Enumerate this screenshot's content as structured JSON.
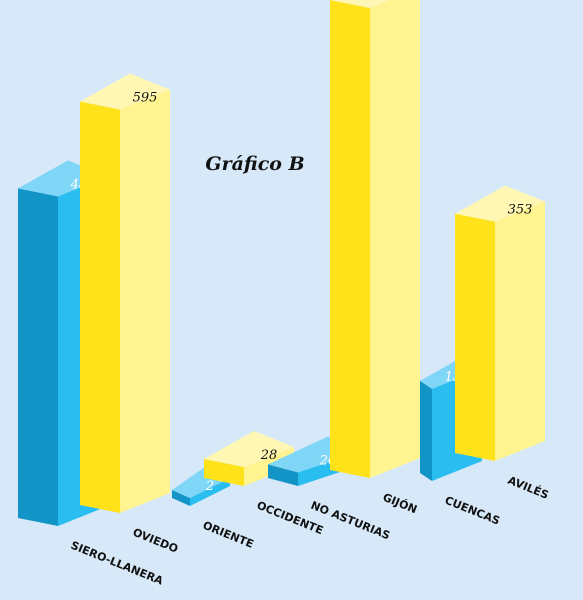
{
  "chart_data": {
    "type": "bar",
    "title": "Gráfico B",
    "categories": [
      "SIERO-LLANERA",
      "OVIEDO",
      "ORIENTE",
      "OCCIDENTE",
      "NO ASTURIAS",
      "GIJÓN",
      "CUENCAS",
      "AVILÉS"
    ],
    "values": [
      486,
      595,
      2,
      28,
      20,
      693,
      136,
      353
    ],
    "colors": [
      "#19aee6",
      "#ffe21a",
      "#19aee6",
      "#ffe21a",
      "#19aee6",
      "#ffe21a",
      "#19aee6",
      "#ffe21a"
    ],
    "ylim": [
      0,
      693
    ],
    "grid": false,
    "legend": "none",
    "style": "3d-bar"
  }
}
